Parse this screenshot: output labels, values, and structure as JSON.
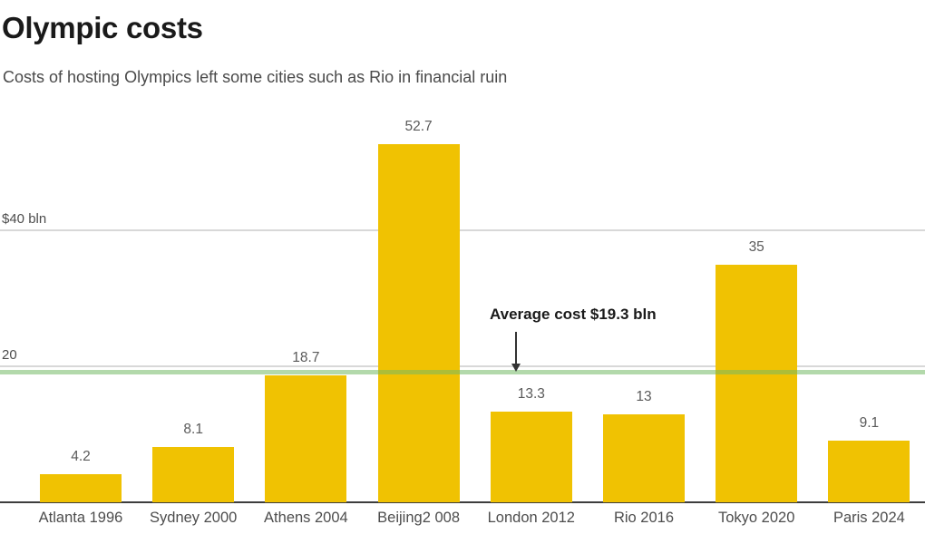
{
  "header": {
    "title": "Olympic costs",
    "subtitle": "Costs of hosting Olympics left some cities such as Rio in financial ruin"
  },
  "chart_data": {
    "type": "bar",
    "title": "Olympic costs",
    "subtitle": "Costs of hosting Olympics left some cities such as Rio in financial ruin",
    "categories": [
      "Atlanta 1996",
      "Sydney 2000",
      "Athens 2004",
      "Beijing2 008",
      "London 2012",
      "Rio 2016",
      "Tokyo 2020",
      "Paris 2024"
    ],
    "values": [
      4.2,
      8.1,
      18.7,
      52.7,
      13.3,
      13,
      35,
      9.1
    ],
    "value_labels": [
      "4.2",
      "8.1",
      "18.7",
      "52.7",
      "13.3",
      "13",
      "35",
      "9.1"
    ],
    "xlabel": "",
    "ylabel": "$ bln",
    "ylim": [
      0,
      56
    ],
    "yticks": [
      {
        "value": 40,
        "label": "$40 bln"
      },
      {
        "value": 20,
        "label": "20"
      }
    ],
    "grid": "horizontal",
    "legend": "none",
    "average_line": {
      "value": 19.3,
      "label": "Average cost $19.3 bln"
    }
  },
  "colors": {
    "bar": "#F0C202",
    "average_line_rgba": "rgba(116,186,102,0.55)",
    "gridline": "#D8D8D8",
    "axis_line": "#3D3D3D",
    "text_primary": "#1A1A1A",
    "text_secondary": "#4A4A4A",
    "value_label": "#5A5A5A"
  }
}
